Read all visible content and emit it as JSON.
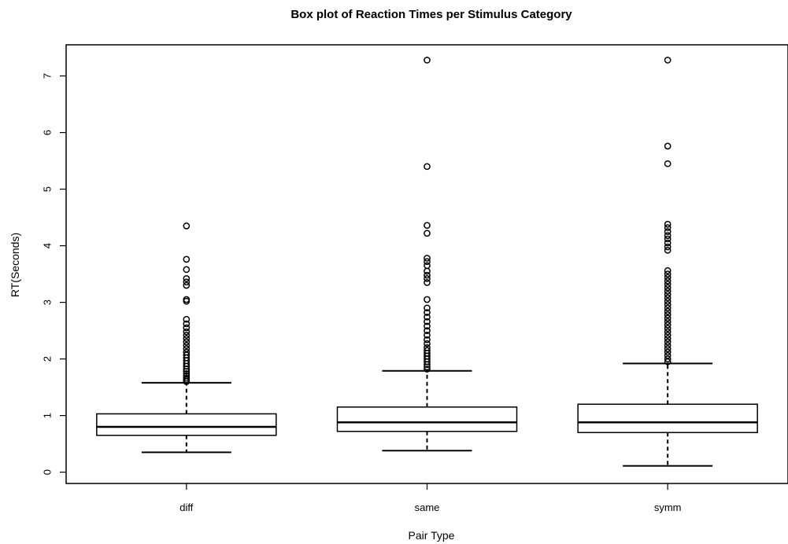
{
  "chart_data": {
    "type": "box",
    "title": "Box plot of Reaction Times per Stimulus Category",
    "xlabel": "Pair Type",
    "ylabel": "RT(Seconds)",
    "ylim": [
      -0.2,
      7.55
    ],
    "yticks": [
      0,
      1,
      2,
      3,
      4,
      5,
      6,
      7
    ],
    "categories": [
      "diff",
      "same",
      "symm"
    ],
    "boxes": [
      {
        "category": "diff",
        "whisker_low": 0.35,
        "q1": 0.65,
        "median": 0.8,
        "q3": 1.03,
        "whisker_high": 1.58,
        "outliers": [
          1.6,
          1.63,
          1.66,
          1.7,
          1.74,
          1.78,
          1.82,
          1.87,
          1.92,
          1.97,
          2.02,
          2.07,
          2.12,
          2.18,
          2.24,
          2.3,
          2.36,
          2.42,
          2.48,
          2.55,
          2.62,
          2.7,
          3.02,
          3.05,
          3.3,
          3.36,
          3.42,
          3.58,
          3.76,
          4.35
        ]
      },
      {
        "category": "same",
        "whisker_low": 0.38,
        "q1": 0.72,
        "median": 0.88,
        "q3": 1.15,
        "whisker_high": 1.79,
        "outliers": [
          1.82,
          1.86,
          1.9,
          1.95,
          2.0,
          2.05,
          2.1,
          2.15,
          2.2,
          2.27,
          2.34,
          2.42,
          2.5,
          2.58,
          2.66,
          2.74,
          2.82,
          2.9,
          3.05,
          3.35,
          3.42,
          3.48,
          3.55,
          3.65,
          3.72,
          3.78,
          4.22,
          4.36,
          5.4,
          7.28
        ]
      },
      {
        "category": "symm",
        "whisker_low": 0.11,
        "q1": 0.7,
        "median": 0.88,
        "q3": 1.2,
        "whisker_high": 1.92,
        "outliers": [
          1.95,
          2.0,
          2.06,
          2.12,
          2.18,
          2.24,
          2.3,
          2.36,
          2.42,
          2.48,
          2.54,
          2.6,
          2.66,
          2.72,
          2.78,
          2.84,
          2.9,
          2.96,
          3.02,
          3.08,
          3.14,
          3.2,
          3.26,
          3.32,
          3.38,
          3.44,
          3.5,
          3.56,
          3.92,
          3.98,
          4.05,
          4.12,
          4.18,
          4.25,
          4.32,
          4.38,
          5.45,
          5.76,
          7.28
        ]
      }
    ],
    "grid": false,
    "legend": "none",
    "color": "#000000"
  }
}
